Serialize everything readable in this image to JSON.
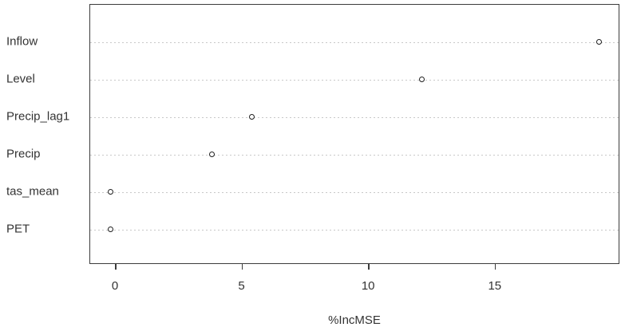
{
  "chart_data": {
    "type": "scatter",
    "variant": "r-dotchart-variable-importance",
    "title": "",
    "xlabel": "%IncMSE",
    "ylabel": "",
    "categories": [
      "Inflow",
      "Level",
      "Precip_lag1",
      "Precip",
      "tas_mean",
      "PET"
    ],
    "values": [
      19.1,
      12.1,
      5.4,
      3.8,
      -0.2,
      -0.2
    ],
    "x_ticks": [
      0,
      5,
      10,
      15
    ],
    "xlim": [
      -1.0,
      19.9
    ],
    "grid": "horizontal dotted line per category, full plot width",
    "legend": "none",
    "marker": "open-circle",
    "colors": {
      "background": "#ffffff",
      "plot_border": "#3c3c3c",
      "grid": "#c8c8c8",
      "marker_stroke": "#1f1f1f",
      "text": "#333333"
    }
  }
}
